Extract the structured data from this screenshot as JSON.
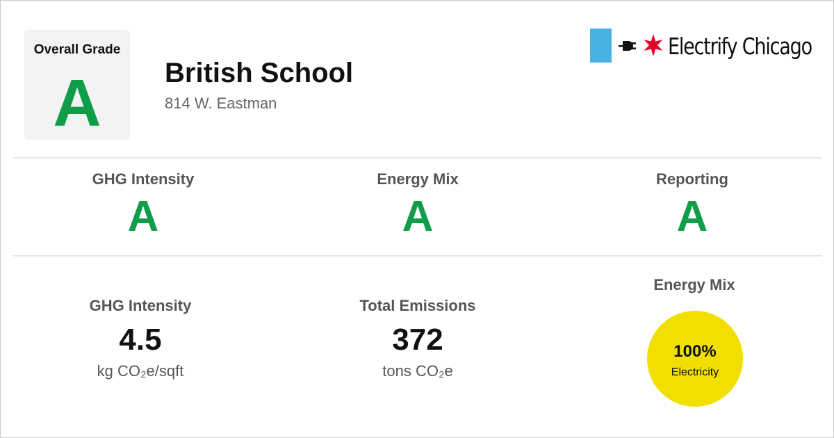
{
  "overall": {
    "label": "Overall Grade",
    "grade": "A"
  },
  "building": {
    "name": "British School",
    "address": "814 W. Eastman"
  },
  "logo": {
    "text": "Electrify Chicago",
    "icons": [
      "plug-icon",
      "six-point-star-icon"
    ]
  },
  "grades": [
    {
      "title": "GHG Intensity",
      "grade": "A"
    },
    {
      "title": "Energy Mix",
      "grade": "A"
    },
    {
      "title": "Reporting",
      "grade": "A"
    }
  ],
  "metrics": [
    {
      "title": "GHG Intensity",
      "value": "4.5",
      "unit": "kg CO₂e/sqft"
    },
    {
      "title": "Total Emissions",
      "value": "372",
      "unit": "tons CO₂e"
    }
  ],
  "energy_mix": {
    "title": "Energy Mix",
    "percent": "100%",
    "source": "Electricity",
    "fraction": 1.0
  },
  "colors": {
    "grade_green": "#0f9d4a",
    "flag_blue": "#48b3e3",
    "star_red": "#e4002b",
    "mix_yellow": "#f0df00"
  }
}
